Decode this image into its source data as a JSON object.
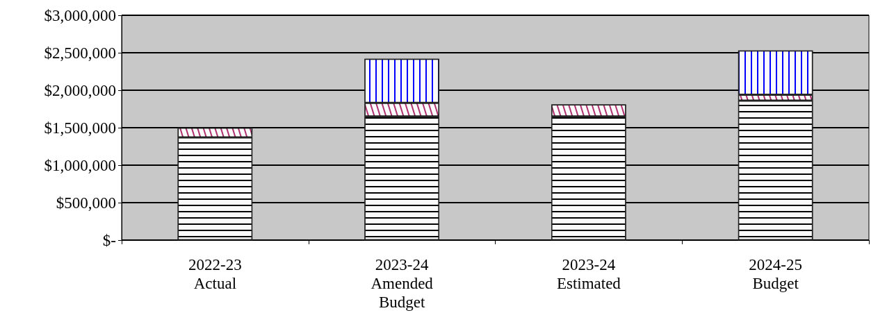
{
  "chart_data": {
    "type": "bar",
    "stacked": true,
    "categories": [
      "2022-23\nActual",
      "2023-24\nAmended\nBudget",
      "2023-24\nEstimated",
      "2024-25\nBudget"
    ],
    "series": [
      {
        "color": "#000000",
        "values": [
          1370000,
          1650000,
          1650000,
          1860000
        ]
      },
      {
        "color": "#b03070",
        "values": [
          130000,
          180000,
          160000,
          80000
        ]
      },
      {
        "color": "#0000ff",
        "values": [
          null,
          590000,
          null,
          590000
        ]
      }
    ],
    "ylim": [
      0,
      3000000
    ],
    "yticks": [
      {
        "value": 0,
        "label": "$-"
      },
      {
        "value": 500000,
        "label": "$500,000"
      },
      {
        "value": 1000000,
        "label": "$1,000,000"
      },
      {
        "value": 1500000,
        "label": "$1,500,000"
      },
      {
        "value": 2000000,
        "label": "$2,000,000"
      },
      {
        "value": 2500000,
        "label": "$2,500,000"
      },
      {
        "value": 3000000,
        "label": "$3,000,000"
      }
    ],
    "grid": "y"
  }
}
